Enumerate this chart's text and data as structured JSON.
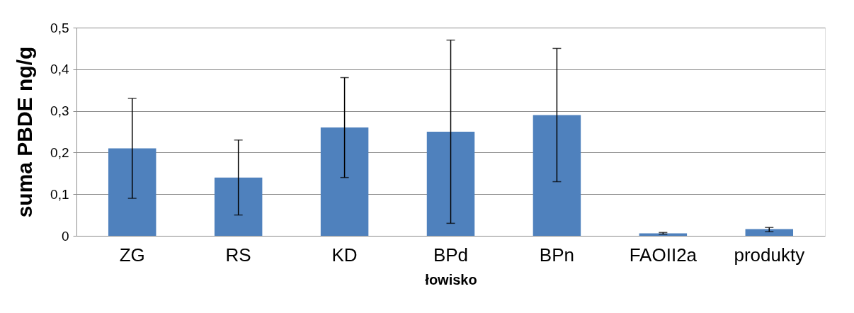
{
  "chart_data": {
    "type": "bar",
    "xlabel": "łowisko",
    "ylabel": "suma PBDE ng/g",
    "categories": [
      "ZG",
      "RS",
      "KD",
      "BPd",
      "BPn",
      "FAOII2a",
      "produkty"
    ],
    "series": [
      {
        "color": "#4f81bd",
        "values": [
          0.21,
          0.14,
          0.26,
          0.25,
          0.29,
          0.006,
          0.016
        ],
        "errors": [
          [
            0.09,
            0.33
          ],
          [
            0.05,
            0.23
          ],
          [
            0.14,
            0.38
          ],
          [
            0.03,
            0.47
          ],
          [
            0.13,
            0.45
          ],
          [
            0.004,
            0.008
          ],
          [
            0.01,
            0.02
          ]
        ]
      }
    ],
    "ylim": [
      0,
      0.5
    ],
    "yticks": [
      0,
      {
        "value": 0.1,
        "label": "0,1"
      },
      {
        "value": 0.2,
        "label": "0,2"
      },
      {
        "value": 0.3,
        "label": "0,3"
      },
      {
        "value": 0.4,
        "label": "0,4"
      },
      {
        "value": 0.5,
        "label": "0,5"
      }
    ],
    "grid": "y"
  }
}
